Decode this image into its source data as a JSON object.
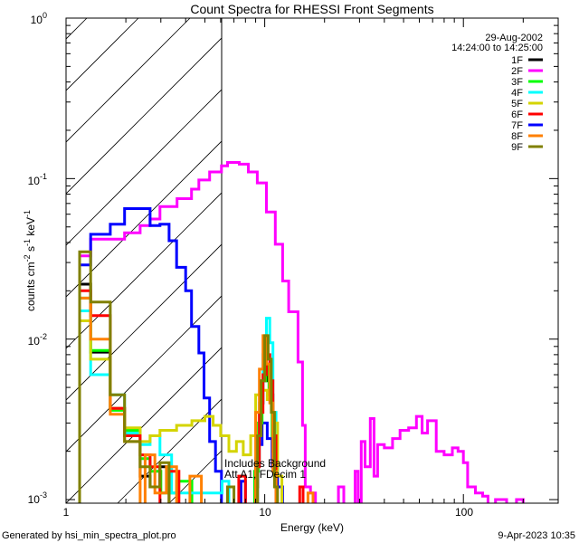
{
  "chart_data": {
    "type": "line",
    "title": "Count Spectra for RHESSI Front Segments",
    "xlabel": "Energy (keV)",
    "ylabel": {
      "base": "counts cm",
      "e1": "-2",
      "mid1": " s",
      "e2": "-1",
      "mid2": " keV",
      "e3": "-1"
    },
    "xscale": "log",
    "yscale": "log",
    "xlim": [
      1,
      300
    ],
    "ylim": [
      0.00095,
      1
    ],
    "x_ticks": [
      {
        "value": 1,
        "label": "1"
      },
      {
        "value": 10,
        "label": "10"
      },
      {
        "value": 100,
        "label": "100"
      }
    ],
    "y_ticks": [
      {
        "value": 1,
        "base": "10",
        "exp": "0"
      },
      {
        "value": 0.1,
        "base": "10",
        "exp": "-1"
      },
      {
        "value": 0.01,
        "base": "10",
        "exp": "-2"
      },
      {
        "value": 0.001,
        "base": "10",
        "exp": "-3"
      }
    ],
    "shaded_region_keV": [
      1,
      6.06
    ],
    "legend_position": "top-right",
    "date": "29-Aug-2002",
    "time_range": "14:24:00 to 14:25:00",
    "annotation": [
      "Includes Background",
      "Att A1, FDecim 1"
    ],
    "series": [
      {
        "name": "1F",
        "color": "#000000",
        "steps": [
          [
            1.17,
            0.022
          ],
          [
            1.33,
            0.0083
          ],
          [
            1.67,
            0.0037
          ],
          [
            1.97,
            0.0025
          ],
          [
            2.36,
            0.0014
          ],
          [
            2.65,
            0.0012
          ],
          [
            2.97,
            0.0016
          ],
          [
            3.3,
            0.0009
          ],
          [
            8.9,
            0.0012
          ],
          [
            9.2,
            0.0025
          ],
          [
            9.5,
            0.004
          ],
          [
            9.8,
            0.0055
          ],
          [
            10.2,
            0.006
          ],
          [
            10.6,
            0.0045
          ],
          [
            11.0,
            0.002
          ],
          [
            11.4,
            0.0009
          ],
          [
            12.0,
            null
          ]
        ]
      },
      {
        "name": "2F",
        "color": "#ff00ff",
        "steps": [
          [
            1.17,
            0.033
          ],
          [
            1.33,
            0.042
          ],
          [
            1.97,
            0.046
          ],
          [
            2.36,
            0.051
          ],
          [
            2.65,
            0.056
          ],
          [
            2.97,
            0.067
          ],
          [
            3.62,
            0.075
          ],
          [
            4.28,
            0.086
          ],
          [
            4.66,
            0.098
          ],
          [
            5.28,
            0.11
          ],
          [
            6.06,
            0.12
          ],
          [
            6.5,
            0.126
          ],
          [
            7.45,
            0.123
          ],
          [
            8.27,
            0.11
          ],
          [
            9.18,
            0.094
          ],
          [
            10.2,
            0.062
          ],
          [
            11.3,
            0.039
          ],
          [
            12.3,
            0.023
          ],
          [
            13.2,
            0.0148
          ],
          [
            14.7,
            0.0072
          ],
          [
            15.5,
            0.0029
          ],
          [
            16.0,
            0.0012
          ],
          [
            17.0,
            0.0011
          ],
          [
            18.0,
            0.0009
          ],
          [
            23.5,
            0.0012
          ],
          [
            25.0,
            0.0009
          ],
          [
            28.5,
            0.0015
          ],
          [
            29.5,
            0.0009
          ],
          [
            30.6,
            0.0023
          ],
          [
            32.0,
            0.0016
          ],
          [
            34.0,
            0.0032
          ],
          [
            35.5,
            0.0014
          ],
          [
            37.0,
            0.0022
          ],
          [
            40.0,
            0.0021
          ],
          [
            44.0,
            0.0024
          ],
          [
            48.0,
            0.0027
          ],
          [
            53.0,
            0.0028
          ],
          [
            58.0,
            0.0033
          ],
          [
            62.0,
            0.0026
          ],
          [
            66.0,
            0.0031
          ],
          [
            73.0,
            0.002
          ],
          [
            80.0,
            0.0019
          ],
          [
            88.0,
            0.0021
          ],
          [
            94.0,
            0.002
          ],
          [
            100.0,
            0.0017
          ],
          [
            105.0,
            0.0012
          ],
          [
            115.0,
            0.0011
          ],
          [
            125.0,
            0.00105
          ],
          [
            133.0,
            0.0009
          ],
          [
            145.0,
            0.001
          ],
          [
            165.0,
            0.0009
          ],
          [
            185.0,
            0.001
          ],
          [
            200.0,
            0.0009
          ],
          [
            217.0,
            null
          ]
        ]
      },
      {
        "name": "3F",
        "color": "#00ff00",
        "steps": [
          [
            1.17,
            0.018
          ],
          [
            1.33,
            0.0085
          ],
          [
            1.67,
            0.0036
          ],
          [
            1.97,
            0.0027
          ],
          [
            2.36,
            0.0018
          ],
          [
            2.65,
            0.0015
          ],
          [
            3.0,
            0.0011
          ],
          [
            3.6,
            0.0013
          ],
          [
            4.3,
            0.0009
          ],
          [
            8.9,
            0.0015
          ],
          [
            9.3,
            0.003
          ],
          [
            9.7,
            0.0055
          ],
          [
            10.1,
            0.007
          ],
          [
            10.5,
            0.005
          ],
          [
            10.9,
            0.0025
          ],
          [
            11.4,
            0.0009
          ],
          [
            12.0,
            null
          ]
        ]
      },
      {
        "name": "4F",
        "color": "#00ffff",
        "steps": [
          [
            1.17,
            0.015
          ],
          [
            1.33,
            0.006
          ],
          [
            1.67,
            0.0045
          ],
          [
            1.97,
            0.0026
          ],
          [
            2.36,
            0.0022
          ],
          [
            2.65,
            0.0025
          ],
          [
            2.97,
            0.0019
          ],
          [
            3.4,
            0.0011
          ],
          [
            6.1,
            0.0013
          ],
          [
            6.6,
            0.0009
          ],
          [
            9.0,
            0.0018
          ],
          [
            9.4,
            0.004
          ],
          [
            9.8,
            0.008
          ],
          [
            10.2,
            0.0135
          ],
          [
            10.6,
            0.0095
          ],
          [
            11.0,
            0.0035
          ],
          [
            11.4,
            0.0009
          ],
          [
            12.0,
            null
          ]
        ]
      },
      {
        "name": "5F",
        "color": "#d4d400",
        "steps": [
          [
            1.17,
            0.013
          ],
          [
            1.33,
            0.0075
          ],
          [
            1.67,
            0.0037
          ],
          [
            1.97,
            0.0028
          ],
          [
            2.36,
            0.0023
          ],
          [
            2.65,
            0.0025
          ],
          [
            2.97,
            0.0027
          ],
          [
            3.6,
            0.0029
          ],
          [
            4.3,
            0.0031
          ],
          [
            5.0,
            0.0033
          ],
          [
            5.5,
            0.0029
          ],
          [
            6.0,
            0.0025
          ],
          [
            6.6,
            0.002
          ],
          [
            7.2,
            0.0023
          ],
          [
            7.8,
            0.0019
          ],
          [
            8.5,
            0.0025
          ],
          [
            9.0,
            0.0045
          ],
          [
            9.6,
            0.0048
          ],
          [
            10.3,
            0.0042
          ],
          [
            11.0,
            0.003
          ],
          [
            11.6,
            0.0014
          ],
          [
            12.2,
            0.0009
          ],
          [
            13.0,
            null
          ]
        ]
      },
      {
        "name": "6F",
        "color": "#ff0000",
        "steps": [
          [
            1.17,
            0.02
          ],
          [
            1.33,
            0.014
          ],
          [
            1.67,
            0.0037
          ],
          [
            1.97,
            0.0025
          ],
          [
            2.36,
            0.0019
          ],
          [
            2.65,
            0.0016
          ],
          [
            2.97,
            0.0009
          ],
          [
            3.3,
            0.0015
          ],
          [
            3.7,
            0.0009
          ],
          [
            7.4,
            0.0014
          ],
          [
            8.0,
            0.0009
          ],
          [
            9.0,
            0.0016
          ],
          [
            9.4,
            0.0035
          ],
          [
            9.8,
            0.006
          ],
          [
            10.2,
            0.008
          ],
          [
            10.6,
            0.0055
          ],
          [
            11.0,
            0.0025
          ],
          [
            11.4,
            0.0009
          ],
          [
            15.0,
            0.0012
          ],
          [
            15.6,
            0.0009
          ],
          [
            16.0,
            null
          ]
        ]
      },
      {
        "name": "7F",
        "color": "#0000ff",
        "steps": [
          [
            1.17,
            0.029
          ],
          [
            1.33,
            0.045
          ],
          [
            1.67,
            0.052
          ],
          [
            1.97,
            0.065
          ],
          [
            2.65,
            0.051
          ],
          [
            2.97,
            0.052
          ],
          [
            3.3,
            0.041
          ],
          [
            3.6,
            0.028
          ],
          [
            4.0,
            0.02
          ],
          [
            4.28,
            0.012
          ],
          [
            4.66,
            0.0082
          ],
          [
            4.95,
            0.0043
          ],
          [
            5.28,
            0.0023
          ],
          [
            5.65,
            0.0015
          ],
          [
            6.06,
            0.0009
          ],
          [
            7.6,
            0.0013
          ],
          [
            8.0,
            0.0009
          ],
          [
            9.2,
            0.0022
          ],
          [
            9.7,
            0.003
          ],
          [
            10.3,
            0.0024
          ],
          [
            10.9,
            0.0016
          ],
          [
            11.6,
            0.0012
          ],
          [
            12.3,
            0.0009
          ],
          [
            13.0,
            null
          ]
        ]
      },
      {
        "name": "8F",
        "color": "#ff8000",
        "steps": [
          [
            1.17,
            0.018
          ],
          [
            1.33,
            0.01
          ],
          [
            1.67,
            0.0034
          ],
          [
            1.97,
            0.0023
          ],
          [
            2.36,
            0.0009
          ],
          [
            2.5,
            0.0019
          ],
          [
            2.8,
            0.0011
          ],
          [
            3.2,
            0.0016
          ],
          [
            3.6,
            0.0009
          ],
          [
            4.2,
            0.0014
          ],
          [
            4.8,
            0.0009
          ],
          [
            9.0,
            0.0035
          ],
          [
            9.4,
            0.0065
          ],
          [
            9.8,
            0.0105
          ],
          [
            10.2,
            0.007
          ],
          [
            10.6,
            0.004
          ],
          [
            11.0,
            0.0015
          ],
          [
            11.4,
            0.0009
          ],
          [
            16.5,
            0.0011
          ],
          [
            17.5,
            0.0009
          ],
          [
            18.0,
            null
          ]
        ]
      },
      {
        "name": "9F",
        "color": "#808000",
        "steps": [
          [
            1.17,
            0.035
          ],
          [
            1.33,
            0.017
          ],
          [
            1.67,
            0.0045
          ],
          [
            1.97,
            0.0023
          ],
          [
            2.36,
            0.0016
          ],
          [
            2.65,
            0.0012
          ],
          [
            2.97,
            0.0017
          ],
          [
            3.3,
            0.0009
          ],
          [
            6.5,
            0.0012
          ],
          [
            7.0,
            0.0009
          ],
          [
            9.2,
            0.0025
          ],
          [
            9.6,
            0.0055
          ],
          [
            10.0,
            0.0105
          ],
          [
            10.4,
            0.0075
          ],
          [
            10.8,
            0.0035
          ],
          [
            11.2,
            0.0012
          ],
          [
            11.6,
            0.0009
          ],
          [
            12.0,
            null
          ]
        ]
      }
    ]
  },
  "footer": {
    "generated_by": "Generated by hsi_min_spectra_plot.pro",
    "timestamp": "9-Apr-2023 10:35"
  }
}
